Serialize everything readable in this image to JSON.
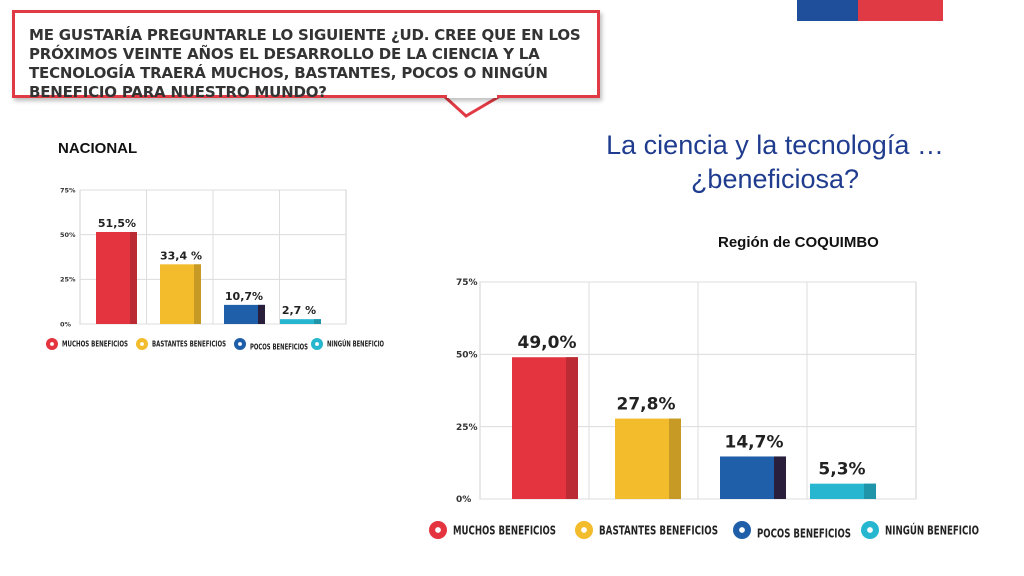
{
  "question": "ME GUSTARÍA PREGUNTARLE LO SIGUIENTE ¿UD. CREE QUE EN LOS PRÓXIMOS VEINTE AÑOS EL DESARROLLO DE LA CIENCIA Y LA TECNOLOGÍA TRAERÁ MUCHOS, BASTANTES, POCOS O NINGÚN BENEFICIO PARA NUESTRO MUNDO?",
  "main_title_line1": "La ciencia y la tecnología …",
  "main_title_line2": "¿beneficiosa?",
  "label_nacional": "NACIONAL",
  "label_region": "Región de COQUIMBO",
  "colors": {
    "accent_red": "#e03a44",
    "accent_blue": "#1f4e9a",
    "title_blue": "#1f3c8f"
  },
  "chart_data": [
    {
      "type": "bar",
      "panel": "NACIONAL",
      "categories": [
        "MUCHOS BENEFICIOS",
        "BASTANTES BENEFICIOS",
        "POCOS BENEFICIOS",
        "NINGÚN BENEFICIO"
      ],
      "values": [
        51.5,
        33.4,
        10.7,
        2.7
      ],
      "value_labels": [
        "51,5%",
        "33,4 %",
        "10,7%",
        "2,7 %"
      ],
      "ylim": [
        0,
        75
      ],
      "yticks": [
        "0%",
        "25%",
        "50%",
        "75%"
      ],
      "grid": true,
      "legend": "bottom",
      "colors": [
        "#e3343f",
        "#f2bc2c",
        "#1f5ea8",
        "#27b6cf"
      ]
    },
    {
      "type": "bar",
      "panel": "Región de COQUIMBO",
      "categories": [
        "MUCHOS BENEFICIOS",
        "BASTANTES BENEFICIOS",
        "POCOS BENEFICIOS",
        "NINGÚN BENEFICIO"
      ],
      "values": [
        49.0,
        27.8,
        14.7,
        5.3
      ],
      "value_labels": [
        "49,0%",
        "27,8%",
        "14,7%",
        "5,3%"
      ],
      "ylim": [
        0,
        75
      ],
      "yticks": [
        "0%",
        "25%",
        "50%",
        "75%"
      ],
      "grid": true,
      "legend": "bottom",
      "colors": [
        "#e3343f",
        "#f2bc2c",
        "#1f5ea8",
        "#27b6cf"
      ]
    }
  ]
}
